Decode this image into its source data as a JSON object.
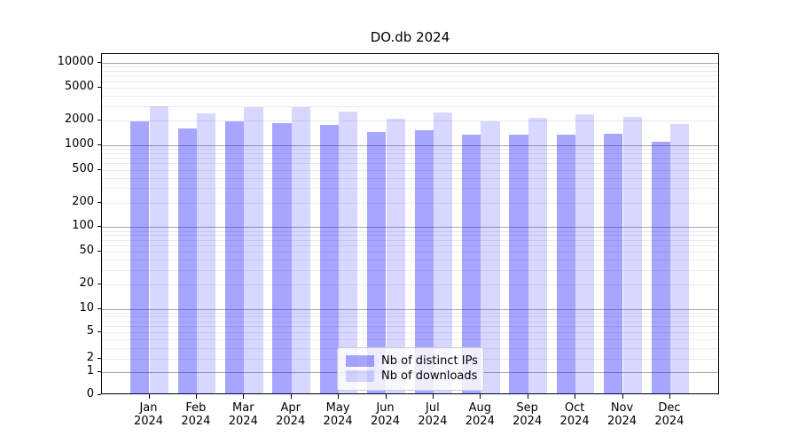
{
  "chart_data": {
    "type": "bar",
    "title": "DO.db 2024",
    "xlabel": "",
    "ylabel": "",
    "scale": "symlog",
    "ylim": [
      0,
      12800
    ],
    "grid": true,
    "legend_position": "lower center",
    "categories": [
      "Jan 2024",
      "Feb 2024",
      "Mar 2024",
      "Apr 2024",
      "May 2024",
      "Jun 2024",
      "Jul 2024",
      "Aug 2024",
      "Sep 2024",
      "Oct 2024",
      "Nov 2024",
      "Dec 2024"
    ],
    "month_labels": [
      "Jan",
      "Feb",
      "Mar",
      "Apr",
      "May",
      "Jun",
      "Jul",
      "Aug",
      "Sep",
      "Oct",
      "Nov",
      "Dec"
    ],
    "year_label": "2024",
    "y_ticks": [
      10000,
      5000,
      2000,
      1000,
      500,
      200,
      100,
      50,
      20,
      10,
      5,
      2,
      1,
      0
    ],
    "series": [
      {
        "name": "Nb of distinct IPs",
        "color": "rgba(0,0,255,0.35)",
        "values": [
          1940,
          1580,
          1940,
          1830,
          1760,
          1430,
          1520,
          1340,
          1330,
          1340,
          1360,
          1100
        ]
      },
      {
        "name": "Nb of downloads",
        "color": "rgba(0,0,255,0.155)",
        "values": [
          2950,
          2400,
          2900,
          2890,
          2550,
          2080,
          2470,
          1940,
          2140,
          2350,
          2210,
          1820
        ]
      }
    ]
  },
  "colors": {
    "major_grid": "#a8a8a8",
    "minor_grid": "#eaeaea",
    "spine": "#000000",
    "background": "#ffffff"
  }
}
